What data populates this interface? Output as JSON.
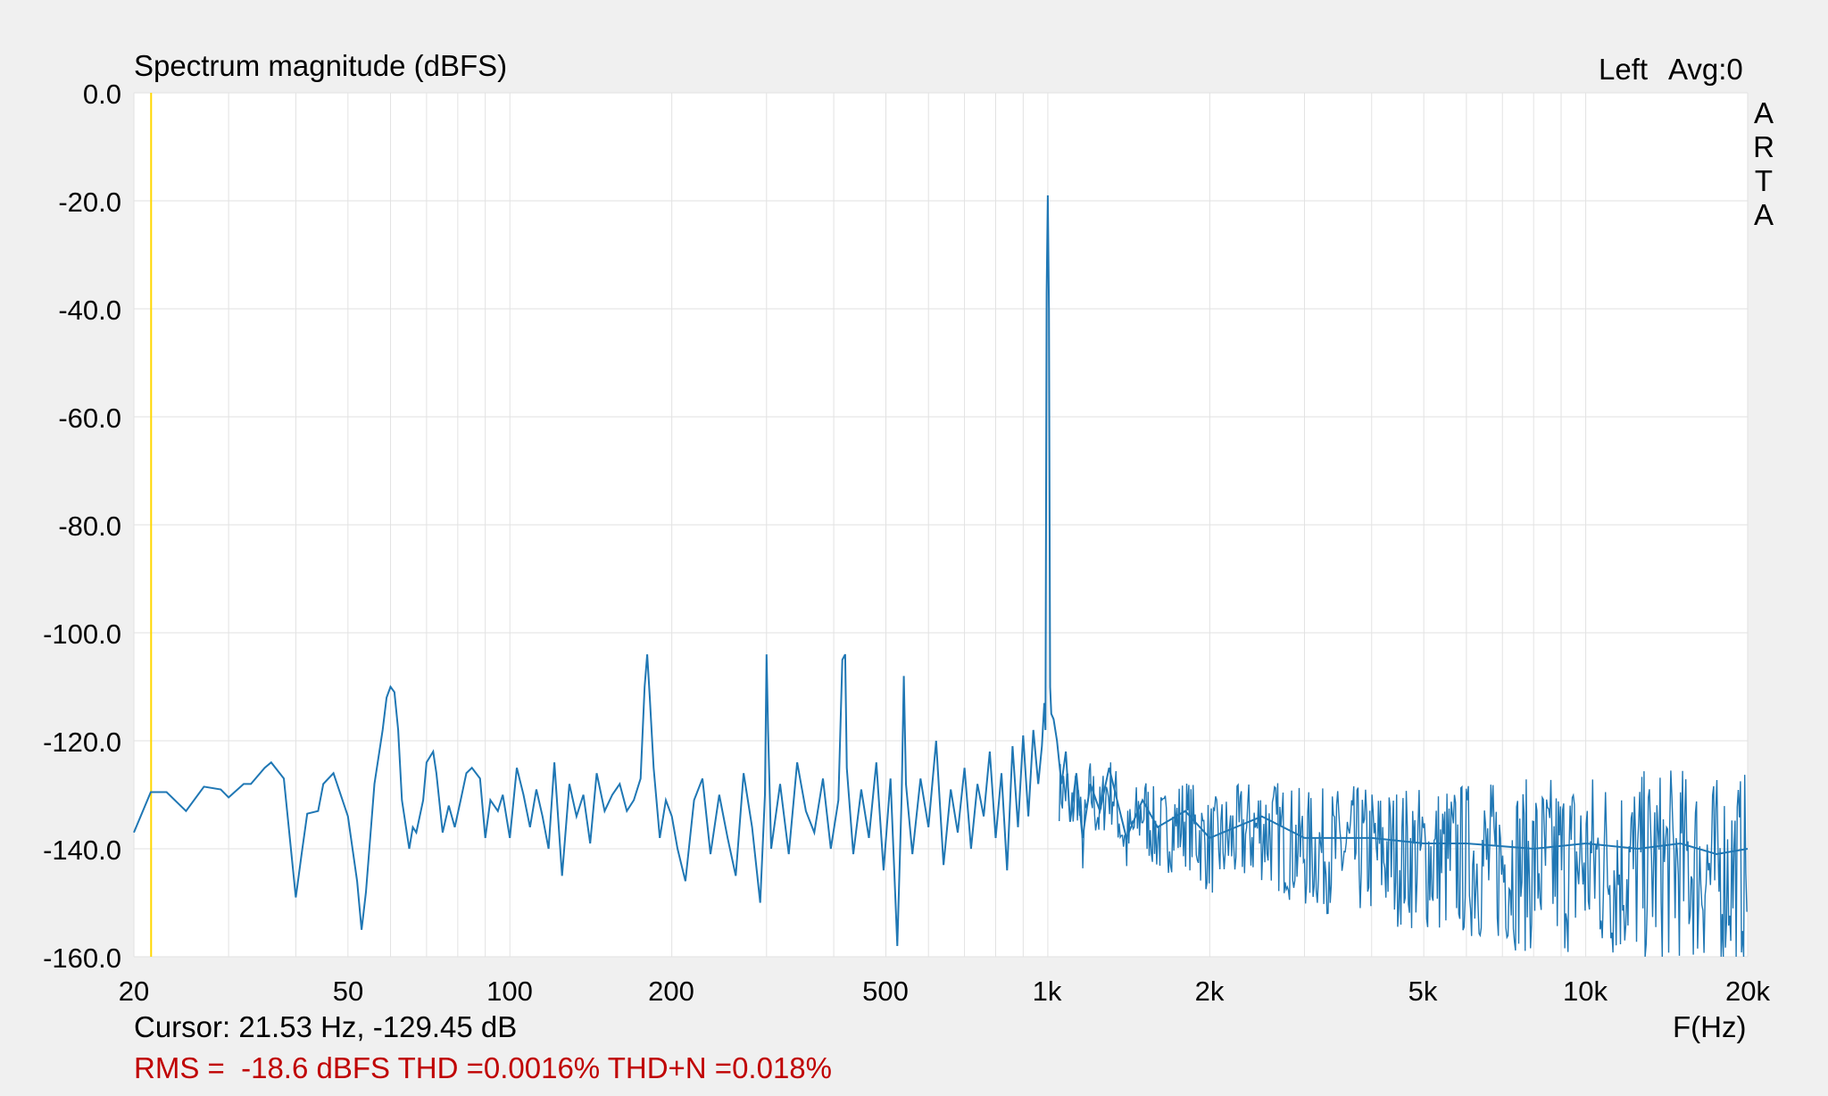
{
  "chart_data": {
    "type": "line",
    "title": "Spectrum magnitude (dBFS)",
    "xlabel": "F(Hz)",
    "ylabel": "",
    "xscale": "log",
    "xlim": [
      20,
      20000
    ],
    "ylim": [
      -160,
      0
    ],
    "grid": true,
    "x_tick_labels": [
      "20",
      "50",
      "100",
      "200",
      "500",
      "1k",
      "2k",
      "5k",
      "10k",
      "20k"
    ],
    "x_tick_values": [
      20,
      50,
      100,
      200,
      500,
      1000,
      2000,
      5000,
      10000,
      20000
    ],
    "y_tick_labels": [
      "0.0",
      "-20.0",
      "-40.0",
      "-60.0",
      "-80.0",
      "-100.0",
      "-120.0",
      "-140.0",
      "-160.0"
    ],
    "y_tick_values": [
      0,
      -20,
      -40,
      -60,
      -80,
      -100,
      -120,
      -140,
      -160
    ],
    "channel_label": "Left",
    "avg_label": "Avg:0",
    "watermark": [
      "A",
      "R",
      "T",
      "A"
    ],
    "cursor": {
      "freq_hz": 21.53,
      "level_db": -129.45,
      "text": "Cursor: 21.53 Hz, -129.45 dB"
    },
    "measurement_text": "RMS =  -18.6 dBFS THD =0.0016% THD+N =0.018%",
    "line_color": "#1f77b4",
    "cursor_color": "#ffd700",
    "measurement_color": "#c00000",
    "series": [
      {
        "values_x_hz": [
          20,
          21.5,
          23,
          25,
          27,
          29,
          30,
          32,
          33,
          35,
          36,
          38,
          40,
          41,
          42,
          44,
          45,
          47,
          50,
          52,
          53,
          54,
          56,
          58,
          59,
          60,
          61,
          62,
          63,
          65,
          66,
          67,
          69,
          70,
          72,
          73,
          75,
          77,
          79,
          81,
          83,
          85,
          88,
          90,
          92,
          95,
          97,
          100,
          103,
          106,
          109,
          112,
          115,
          118,
          121,
          125,
          129,
          133,
          137,
          141,
          145,
          150,
          155,
          160,
          165,
          170,
          175,
          178,
          180,
          182,
          185,
          190,
          195,
          200,
          205,
          212,
          220,
          228,
          236,
          245,
          254,
          263,
          272,
          282,
          292,
          298,
          300,
          302,
          306,
          318,
          330,
          342,
          355,
          368,
          382,
          395,
          408,
          415,
          420,
          423,
          435,
          450,
          465,
          480,
          495,
          510,
          525,
          535,
          540,
          545,
          560,
          580,
          600,
          620,
          640,
          660,
          680,
          700,
          720,
          740,
          760,
          780,
          800,
          820,
          840,
          860,
          880,
          900,
          920,
          940,
          960,
          975,
          985,
          990,
          995,
          1000,
          1005,
          1010,
          1015,
          1025,
          1040,
          1060,
          1080,
          1100,
          1130,
          1160,
          1200,
          1250,
          1300,
          1400,
          1500,
          1600,
          1800,
          2000,
          2500,
          3000,
          4000,
          5000,
          6000,
          8000,
          10000,
          12500,
          15000,
          17500,
          20000
        ],
        "values_db": [
          -137,
          -129.5,
          -129.5,
          -133,
          -128.5,
          -129,
          -130.5,
          -128,
          -128,
          -125,
          -124,
          -127,
          -149,
          -141,
          -133.5,
          -133,
          -128,
          -126,
          -134,
          -146,
          -155,
          -148,
          -128,
          -118,
          -112,
          -110,
          -111,
          -118,
          -131,
          -140,
          -136,
          -137,
          -131,
          -124,
          -122,
          -126,
          -137,
          -132,
          -136,
          -131,
          -126,
          -125,
          -127,
          -138,
          -131,
          -133,
          -130,
          -138,
          -125,
          -130,
          -136,
          -129,
          -134,
          -140,
          -124,
          -145,
          -128,
          -134,
          -130,
          -139,
          -126,
          -133,
          -130,
          -128,
          -133,
          -131,
          -127,
          -110,
          -104,
          -112,
          -125,
          -138,
          -131,
          -134,
          -140,
          -146,
          -131,
          -127,
          -141,
          -130,
          -138,
          -145,
          -126,
          -136,
          -150,
          -130,
          -104,
          -118,
          -140,
          -128,
          -141,
          -124,
          -133,
          -137,
          -127,
          -140,
          -131,
          -105,
          -104,
          -125,
          -141,
          -129,
          -138,
          -124,
          -144,
          -127,
          -158,
          -130,
          -108,
          -128,
          -141,
          -127,
          -136,
          -120,
          -143,
          -129,
          -137,
          -125,
          -140,
          -128,
          -134,
          -122,
          -138,
          -126,
          -144,
          -121,
          -136,
          -119,
          -134,
          -118,
          -128,
          -121,
          -113,
          -118,
          -37,
          -19,
          -40,
          -110,
          -115,
          -116,
          -120,
          -128,
          -122,
          -135,
          -126,
          -138,
          -128,
          -133,
          -125,
          -138,
          -131,
          -136,
          -133,
          -138,
          -134,
          -138,
          -138,
          -139,
          -139,
          -140,
          -139,
          -140,
          -139,
          -141,
          -140
        ]
      }
    ]
  }
}
